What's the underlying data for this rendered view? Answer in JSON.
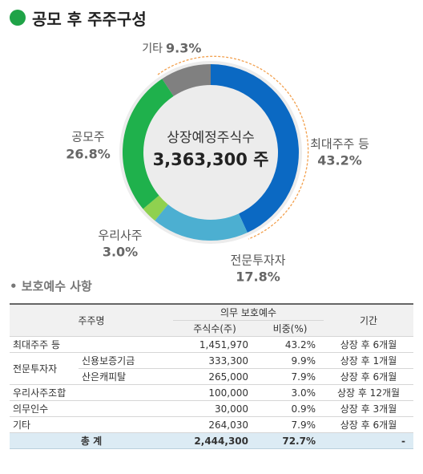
{
  "header": {
    "title": "공모 후 주주구성"
  },
  "chart_data": {
    "type": "donut",
    "center_label": [
      "상장예정주식수",
      "3,363,300 주"
    ],
    "categories": [
      "최대주주 등",
      "전문투자자",
      "우리사주",
      "공모주",
      "기타"
    ],
    "values": [
      43.2,
      17.8,
      3.0,
      26.8,
      9.3
    ],
    "value_labels": [
      "43.2%",
      "17.8%",
      "3.0%",
      "26.8%",
      "9.3%"
    ],
    "colors": [
      "#0b69c3",
      "#4cafd1",
      "#8fd14f",
      "#1fb14c",
      "#808080"
    ]
  },
  "section": {
    "title": "• 보호예수 사항"
  },
  "table": {
    "header": {
      "holder": "주주명",
      "lockup": "의무 보호예수",
      "shares": "주식수(주)",
      "ratio": "비중(%)",
      "period": "기간"
    },
    "rows": [
      {
        "name": "최대주주 등",
        "shares": "1,451,970",
        "ratio": "43.2%",
        "period": "상장 후 6개월"
      },
      {
        "group": "전문투자자",
        "name": "신용보증기금",
        "shares": "333,300",
        "ratio": "9.9%",
        "period": "상장 후 1개월"
      },
      {
        "name": "산은캐피탈",
        "shares": "265,000",
        "ratio": "7.9%",
        "period": "상장 후 6개월"
      },
      {
        "name": "우리사주조합",
        "shares": "100,000",
        "ratio": "3.0%",
        "period": "상장 후 12개월"
      },
      {
        "name": "의무인수",
        "shares": "30,000",
        "ratio": "0.9%",
        "period": "상장 후 3개월"
      },
      {
        "name": "기타",
        "shares": "264,030",
        "ratio": "7.9%",
        "period": "상장 후 6개월"
      }
    ],
    "total": {
      "name": "총 계",
      "shares": "2,444,300",
      "ratio": "72.7%",
      "period": "-"
    }
  }
}
